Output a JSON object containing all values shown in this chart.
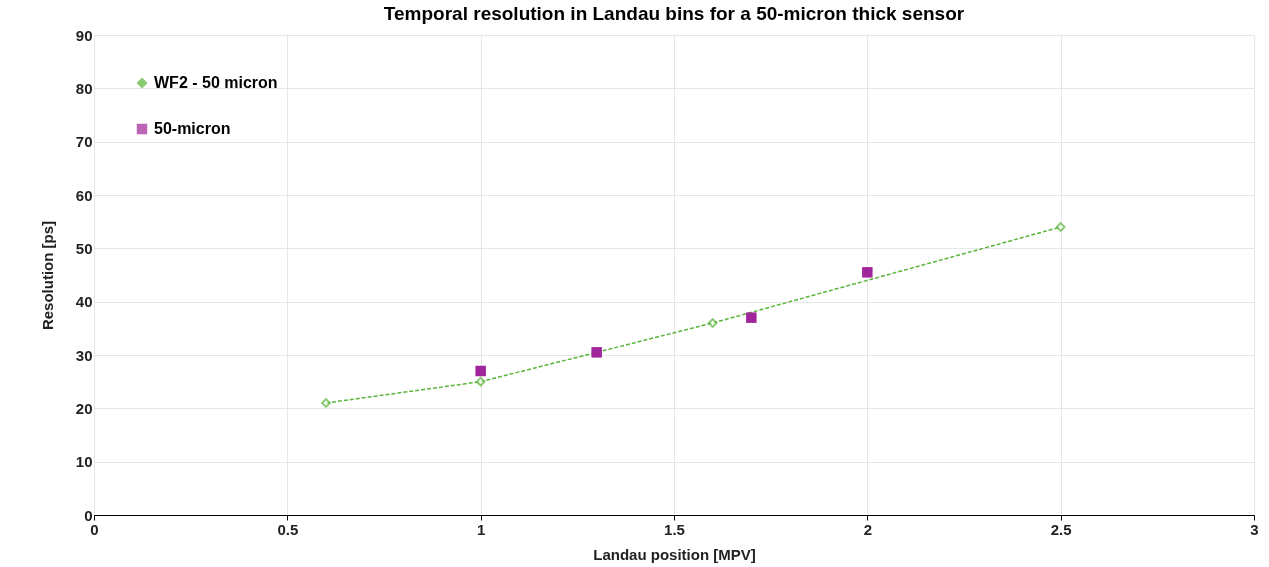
{
  "chart_data": {
    "type": "line",
    "title": "Temporal resolution in Landau bins for a 50-micron thick sensor",
    "xlabel": "Landau position [MPV]",
    "ylabel": "Resolution [ps]",
    "series": [
      {
        "name": "WF2 - 50 micron",
        "color": "#5bb53a",
        "marker": "diamond",
        "line_style": "dashed",
        "x": [
          0.6,
          1,
          1.6,
          2.5
        ],
        "values": [
          21,
          25,
          36,
          54
        ]
      },
      {
        "name": "50-micron",
        "type": "scatter",
        "color": "#a0259a",
        "marker": "square",
        "x": [
          1,
          1.3,
          1.7,
          2
        ],
        "values": [
          27,
          30.5,
          37,
          45.5
        ]
      }
    ],
    "xlim": [
      0,
      3
    ],
    "xticks": [
      0,
      0.5,
      1,
      1.5,
      2,
      2.5,
      3
    ],
    "ylim": [
      0,
      90
    ],
    "yticks": [
      0,
      10,
      20,
      30,
      40,
      50,
      60,
      70,
      80,
      90
    ],
    "grid": true,
    "legend": "top left"
  }
}
